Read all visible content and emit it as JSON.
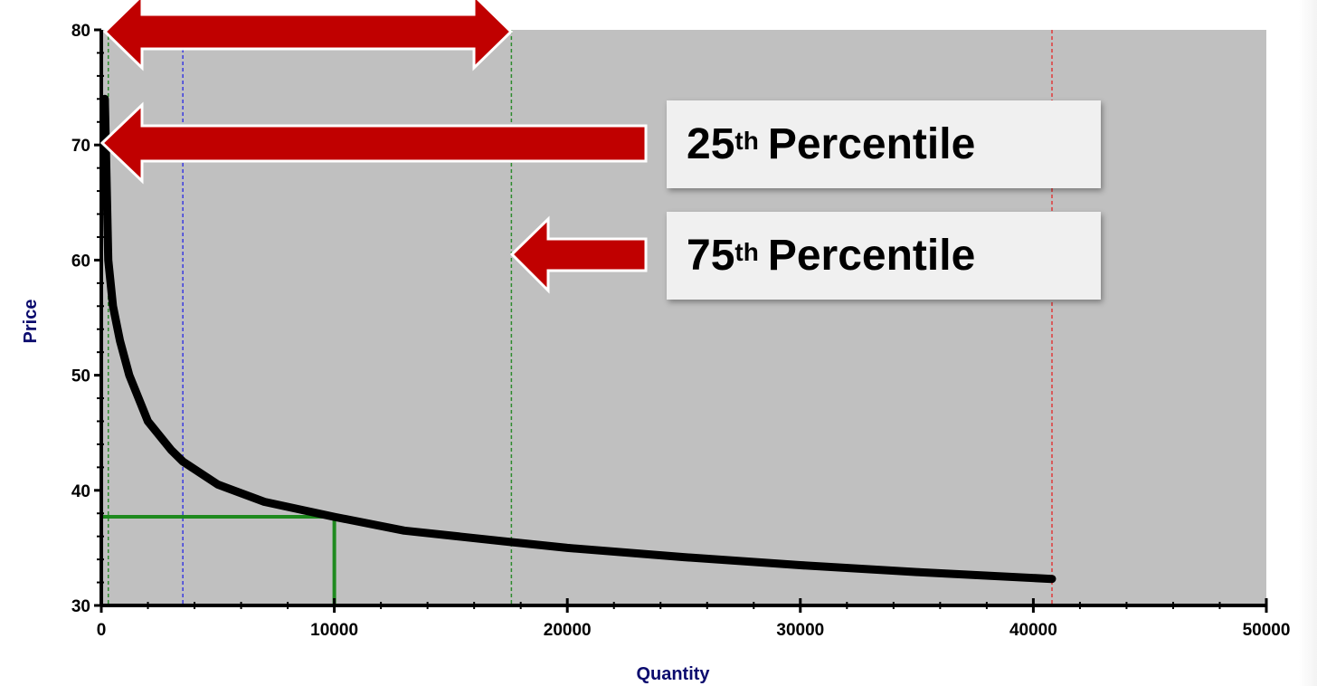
{
  "chart_data": {
    "type": "line",
    "xlabel": "Quantity",
    "ylabel": "Price",
    "xlim": [
      0,
      50000
    ],
    "ylim": [
      30,
      80
    ],
    "x_ticks": [
      0,
      10000,
      20000,
      30000,
      40000,
      50000
    ],
    "y_ticks": [
      30,
      40,
      50,
      60,
      70,
      80
    ],
    "x_tick_labels": [
      "0",
      "10000",
      "20000",
      "30000",
      "40000",
      "50000"
    ],
    "y_tick_labels": [
      "30",
      "40",
      "50",
      "60",
      "70",
      "80"
    ],
    "series": [
      {
        "x": [
          150,
          300,
          500,
          800,
          1200,
          2000,
          3000,
          3500,
          5000,
          7000,
          10000,
          13000,
          17600,
          20000,
          25000,
          30000,
          35000,
          40800
        ],
        "y": [
          74,
          60,
          56,
          53,
          50,
          46,
          43.5,
          42.5,
          40.5,
          39,
          37.7,
          36.5,
          35.5,
          35,
          34.2,
          33.5,
          32.9,
          32.3
        ]
      }
    ],
    "reference_lines": [
      {
        "x": 300,
        "color": "#2e8b2e"
      },
      {
        "x": 3500,
        "color": "#3a3ae0"
      },
      {
        "x": 17600,
        "color": "#2e8b2e"
      },
      {
        "x": 40800,
        "color": "#e03a3a"
      }
    ],
    "highlight_point": {
      "x": 10000,
      "y": 37.7,
      "color": "#1f8a1f"
    },
    "plot_background": "#c0c0c0",
    "grid": false
  },
  "annotations": {
    "label_25": {
      "number": "25",
      "suffix": "th",
      "text": "Percentile"
    },
    "label_75": {
      "number": "75",
      "suffix": "th",
      "text": "Percentile"
    }
  },
  "colors": {
    "arrow_fill": "#c00000",
    "arrow_stroke": "#ffffff",
    "curve": "#000000"
  }
}
